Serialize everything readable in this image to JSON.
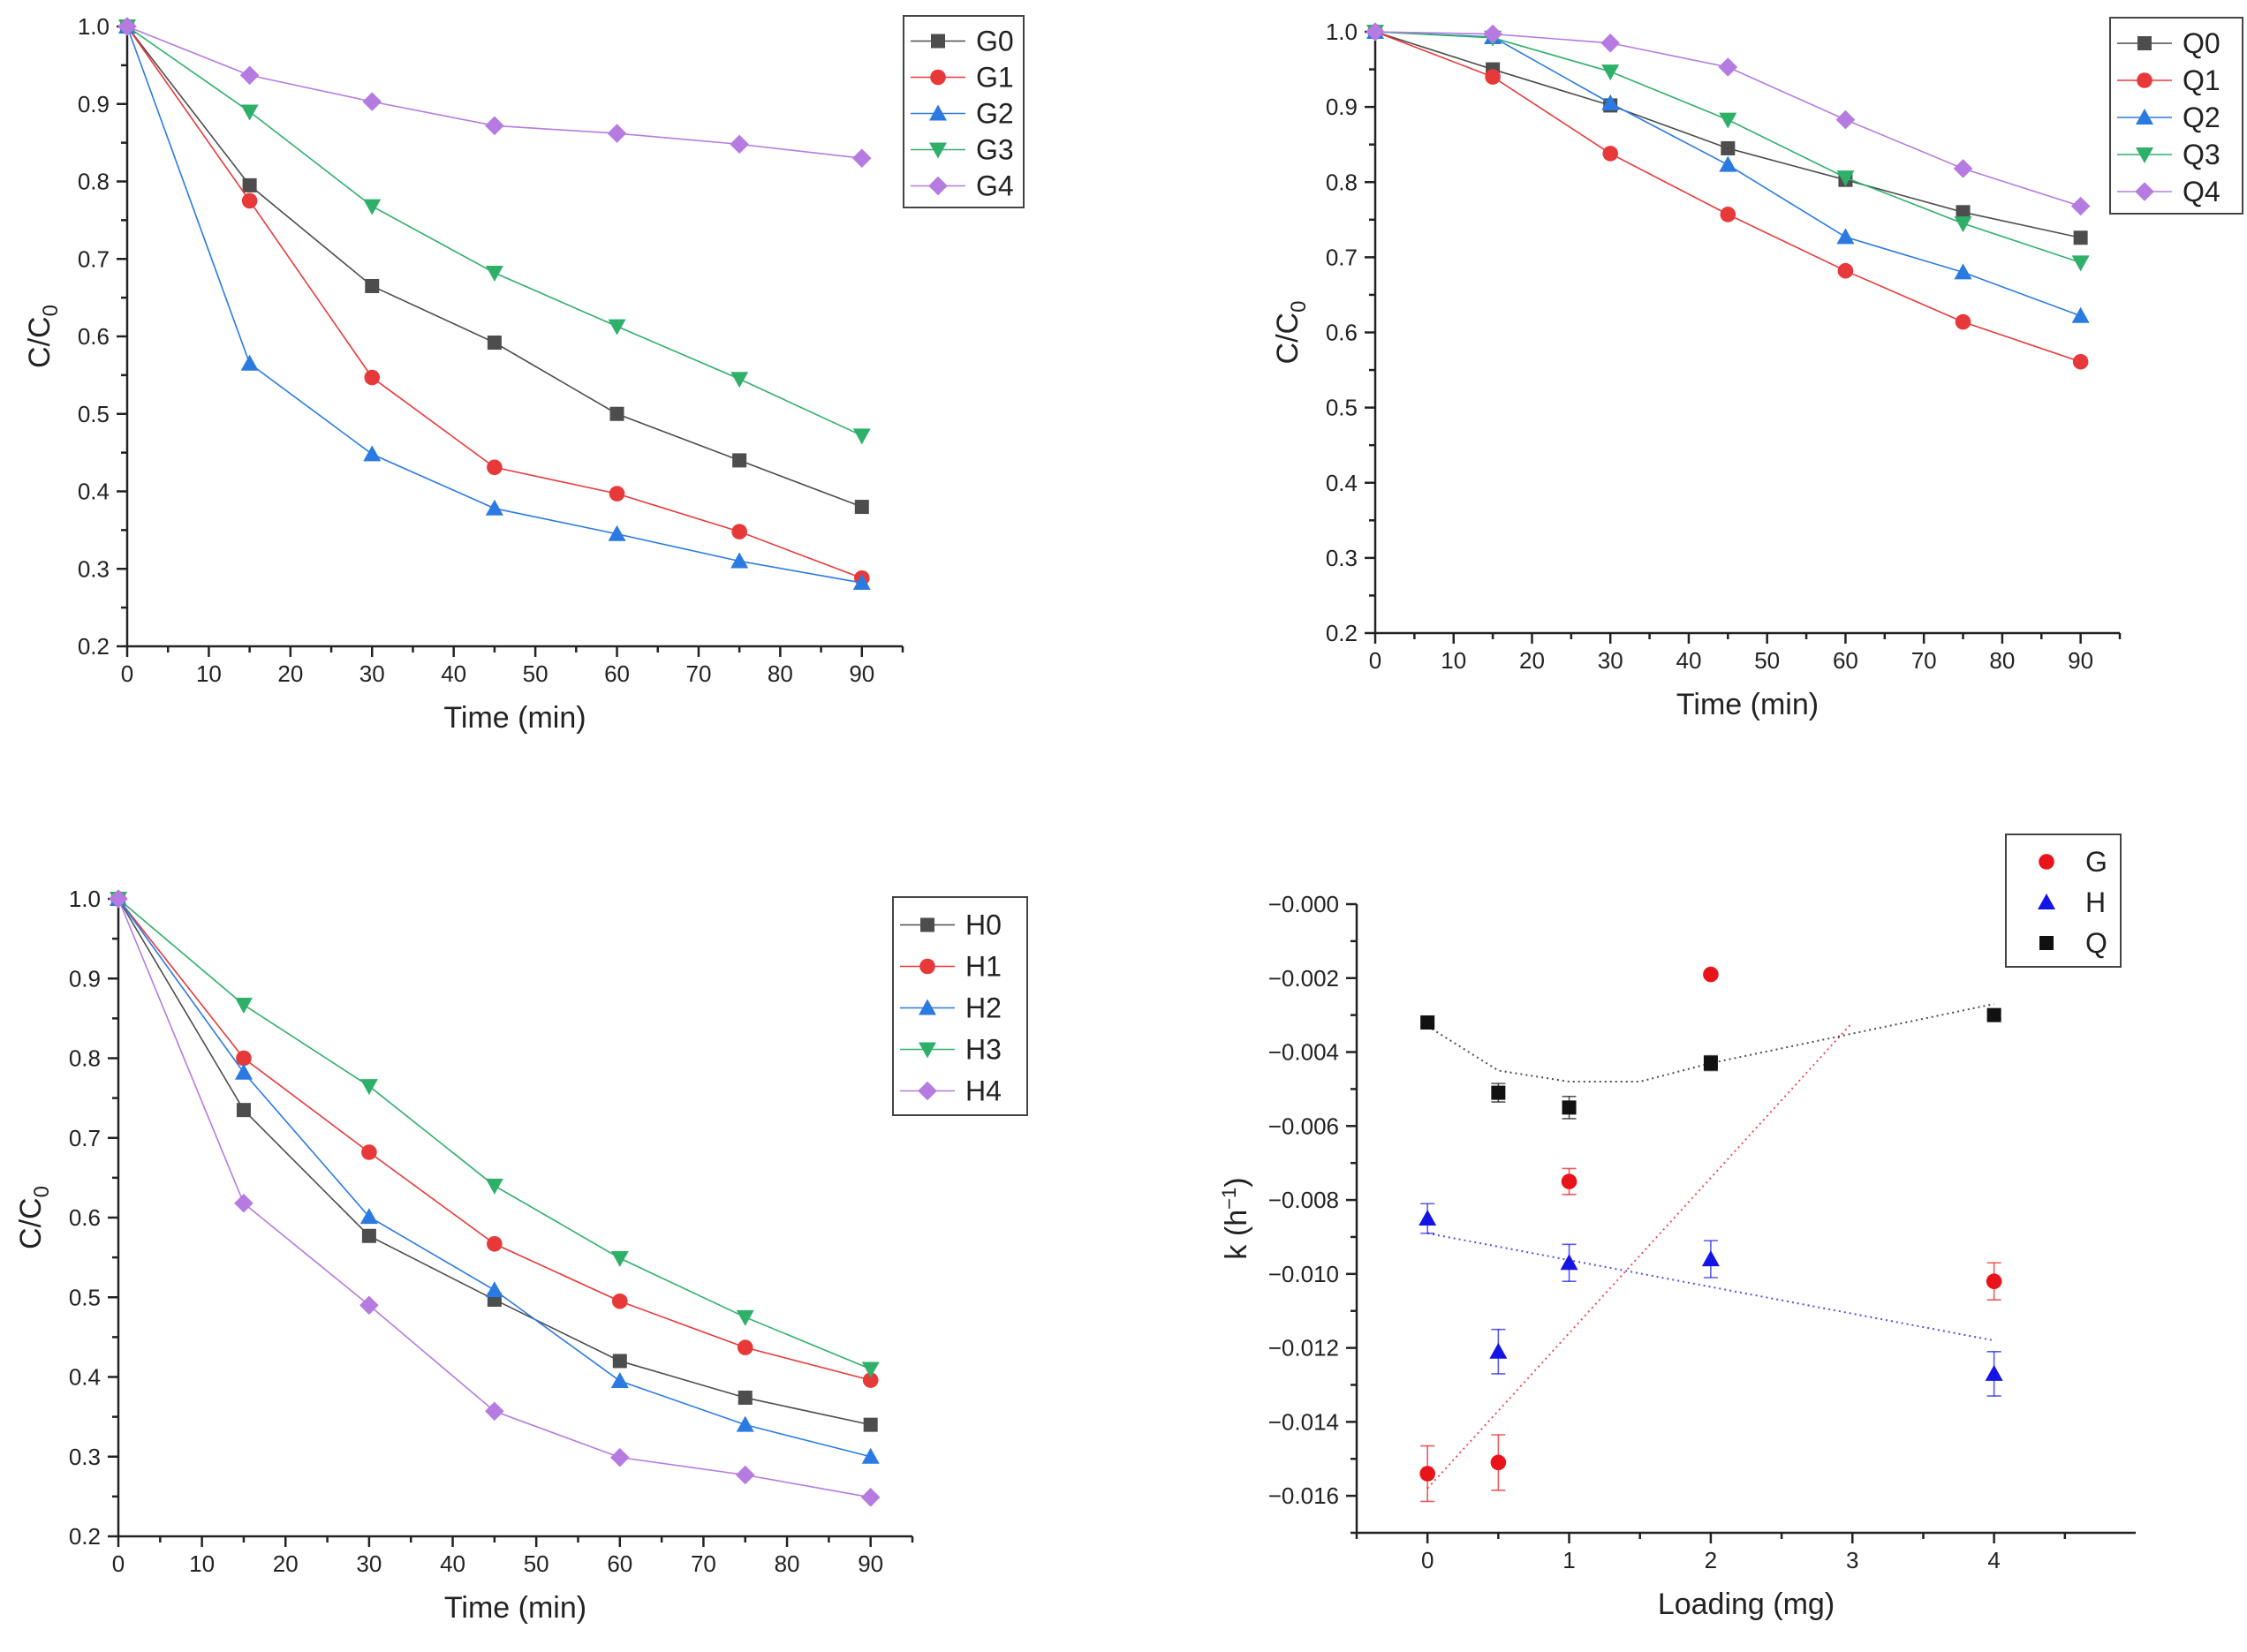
{
  "chart_data": [
    {
      "id": "tl",
      "type": "line",
      "xlabel": "Time (min)",
      "ylabel_main": "C/C",
      "ylabel_sub": "0",
      "xlim": [
        0,
        95
      ],
      "ylim": [
        0.2,
        1.0
      ],
      "xticks": [
        "0",
        "10",
        "20",
        "30",
        "40",
        "50",
        "60",
        "70",
        "80",
        "90"
      ],
      "yticks": [
        "0.2",
        "0.3",
        "0.4",
        "0.5",
        "0.6",
        "0.7",
        "0.8",
        "0.9",
        "1.0"
      ],
      "x": [
        0,
        15,
        30,
        45,
        60,
        75,
        90
      ],
      "series": [
        {
          "name": "G0",
          "marker": "square",
          "color": "#4d4d4d",
          "values": [
            1.0,
            0.795,
            0.665,
            0.592,
            0.5,
            0.44,
            0.38
          ]
        },
        {
          "name": "G1",
          "marker": "circle",
          "color": "#e8393a",
          "values": [
            1.0,
            0.775,
            0.547,
            0.431,
            0.397,
            0.348,
            0.288
          ]
        },
        {
          "name": "G2",
          "marker": "triangle",
          "color": "#2a7ae2",
          "values": [
            1.0,
            0.565,
            0.448,
            0.378,
            0.345,
            0.31,
            0.282
          ]
        },
        {
          "name": "G3",
          "marker": "tri-down",
          "color": "#2fb06a",
          "values": [
            1.0,
            0.89,
            0.768,
            0.682,
            0.613,
            0.545,
            0.472
          ]
        },
        {
          "name": "G4",
          "marker": "diamond",
          "color": "#b57be0",
          "values": [
            1.0,
            0.937,
            0.903,
            0.872,
            0.862,
            0.848,
            0.83
          ]
        }
      ]
    },
    {
      "id": "tr",
      "type": "line",
      "xlabel": "Time (min)",
      "ylabel_main": "C/C",
      "ylabel_sub": "0",
      "xlim": [
        0,
        95
      ],
      "ylim": [
        0.2,
        1.0
      ],
      "xticks": [
        "0",
        "10",
        "20",
        "30",
        "40",
        "50",
        "60",
        "70",
        "80",
        "90"
      ],
      "yticks": [
        "0.2",
        "0.3",
        "0.4",
        "0.5",
        "0.6",
        "0.7",
        "0.8",
        "0.9",
        "1.0"
      ],
      "x": [
        0,
        15,
        30,
        45,
        60,
        75,
        90
      ],
      "series": [
        {
          "name": "Q0",
          "marker": "square",
          "color": "#4d4d4d",
          "values": [
            1.0,
            0.95,
            0.902,
            0.845,
            0.803,
            0.76,
            0.726
          ]
        },
        {
          "name": "Q1",
          "marker": "circle",
          "color": "#e8393a",
          "values": [
            1.0,
            0.94,
            0.838,
            0.757,
            0.682,
            0.614,
            0.561
          ]
        },
        {
          "name": "Q2",
          "marker": "triangle",
          "color": "#2a7ae2",
          "values": [
            1.0,
            0.993,
            0.905,
            0.823,
            0.727,
            0.68,
            0.622
          ]
        },
        {
          "name": "Q3",
          "marker": "tri-down",
          "color": "#2fb06a",
          "values": [
            1.0,
            0.992,
            0.947,
            0.883,
            0.806,
            0.745,
            0.693
          ]
        },
        {
          "name": "Q4",
          "marker": "diamond",
          "color": "#b57be0",
          "values": [
            1.0,
            0.997,
            0.985,
            0.953,
            0.883,
            0.818,
            0.768
          ]
        }
      ]
    },
    {
      "id": "bl",
      "type": "line",
      "xlabel": "Time (min)",
      "ylabel_main": "C/C",
      "ylabel_sub": "0",
      "xlim": [
        0,
        95
      ],
      "ylim": [
        0.2,
        1.0
      ],
      "xticks": [
        "0",
        "10",
        "20",
        "30",
        "40",
        "50",
        "60",
        "70",
        "80",
        "90"
      ],
      "yticks": [
        "0.2",
        "0.3",
        "0.4",
        "0.5",
        "0.6",
        "0.7",
        "0.8",
        "0.9",
        "1.0"
      ],
      "x": [
        0,
        15,
        30,
        45,
        60,
        75,
        90
      ],
      "series": [
        {
          "name": "H0",
          "marker": "square",
          "color": "#4d4d4d",
          "values": [
            1.0,
            0.735,
            0.577,
            0.497,
            0.42,
            0.374,
            0.34
          ]
        },
        {
          "name": "H1",
          "marker": "circle",
          "color": "#e8393a",
          "values": [
            1.0,
            0.8,
            0.682,
            0.567,
            0.495,
            0.437,
            0.396
          ]
        },
        {
          "name": "H2",
          "marker": "triangle",
          "color": "#2a7ae2",
          "values": [
            1.0,
            0.782,
            0.601,
            0.509,
            0.395,
            0.34,
            0.3
          ]
        },
        {
          "name": "H3",
          "marker": "tri-down",
          "color": "#2fb06a",
          "values": [
            1.0,
            0.867,
            0.765,
            0.64,
            0.549,
            0.475,
            0.41
          ]
        },
        {
          "name": "H4",
          "marker": "diamond",
          "color": "#b57be0",
          "values": [
            1.0,
            0.618,
            0.49,
            0.357,
            0.299,
            0.277,
            0.249
          ]
        }
      ]
    },
    {
      "id": "br",
      "type": "scatter",
      "xlabel": "Loading (mg)",
      "ylabel_main": "k (h",
      "ylabel_sup": "−1",
      "ylabel_end": ")",
      "xlim": [
        -0.5,
        5.0
      ],
      "ylim": [
        -0.017,
        0.0
      ],
      "xticks": [
        {
          "v": 0,
          "t": "0"
        },
        {
          "v": 1,
          "t": "1"
        },
        {
          "v": 2,
          "t": "2"
        },
        {
          "v": 3,
          "t": "3"
        },
        {
          "v": 4,
          "t": "4"
        }
      ],
      "yticks": [
        {
          "v": -0.016,
          "t": "−0.016"
        },
        {
          "v": -0.014,
          "t": "−0.014"
        },
        {
          "v": -0.012,
          "t": "−0.012"
        },
        {
          "v": -0.01,
          "t": "−0.010"
        },
        {
          "v": -0.008,
          "t": "−0.008"
        },
        {
          "v": -0.006,
          "t": "−0.006"
        },
        {
          "v": -0.004,
          "t": "−0.004"
        },
        {
          "v": -0.002,
          "t": "−0.002"
        },
        {
          "v": 0.0,
          "t": "−0.000"
        }
      ],
      "series": [
        {
          "name": "G",
          "marker": "circle",
          "color": "#e8141a",
          "x": [
            0,
            0.5,
            1,
            2,
            4
          ],
          "y": [
            -0.0154,
            -0.0151,
            -0.0075,
            -0.0019,
            -0.0102
          ],
          "err": [
            0.00075,
            0.00075,
            0.00035,
            0,
            0.0005
          ],
          "fit": {
            "x": [
              0,
              3
            ],
            "y": [
              -0.0158,
              -0.0032
            ]
          }
        },
        {
          "name": "H",
          "marker": "triangle",
          "color": "#1414e6",
          "x": [
            0,
            0.5,
            1,
            2,
            4
          ],
          "y": [
            -0.0085,
            -0.0121,
            -0.0097,
            -0.0096,
            -0.0127
          ],
          "err": [
            0.0004,
            0.0006,
            0.0005,
            0.0005,
            0.0006
          ],
          "fit": {
            "x": [
              0,
              4
            ],
            "y": [
              -0.0089,
              -0.0118
            ]
          }
        },
        {
          "name": "Q",
          "marker": "square",
          "color": "#111111",
          "x": [
            0,
            0.5,
            1,
            2,
            4
          ],
          "y": [
            -0.0032,
            -0.0051,
            -0.0055,
            -0.0043,
            -0.003
          ],
          "err": [
            0.0001,
            0.00025,
            0.0003,
            0.0002,
            0.0001
          ],
          "fit": {
            "x": [
              0,
              0.5,
              1,
              1.5,
              2,
              3,
              4
            ],
            "y": [
              -0.0033,
              -0.0045,
              -0.0048,
              -0.0048,
              -0.0043,
              -0.0035,
              -0.0027
            ]
          }
        }
      ]
    }
  ]
}
